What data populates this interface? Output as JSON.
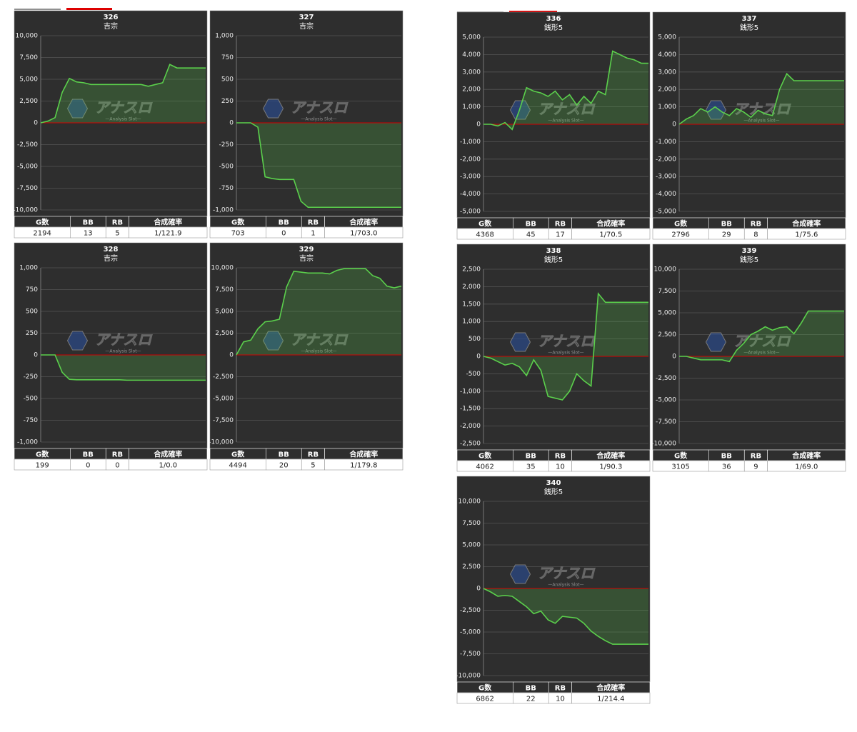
{
  "watermark": {
    "title": "アナスロ",
    "subtitle": "—Analysis Slot—"
  },
  "chart_data": [
    {
      "type": "line",
      "title": "326",
      "subtitle": "吉宗",
      "color": "#5bd04c",
      "ylim": [
        -10000,
        10000
      ],
      "yticks": [
        {
          "value": 10000,
          "label": "10,000"
        },
        {
          "value": 7500,
          "label": "7,500"
        },
        {
          "value": 5000,
          "label": "5,000"
        },
        {
          "value": 2500,
          "label": "2,500"
        },
        0,
        {
          "value": -2500,
          "label": "-2,500"
        },
        {
          "value": -5000,
          "label": "-5,000"
        },
        {
          "value": -7500,
          "label": "-7,500"
        },
        {
          "value": -10000,
          "label": "-10,000"
        }
      ],
      "values": [
        0,
        200,
        600,
        3500,
        5100,
        4700,
        4600,
        4400,
        4400,
        4400,
        4400,
        4400,
        4400,
        4400,
        4400,
        4200,
        4400,
        4600,
        6700,
        6300,
        6300,
        6300,
        6300,
        6300
      ],
      "table": {
        "headers": [
          "G数",
          "BB",
          "RB",
          "合成確率"
        ],
        "row": [
          "2194",
          "13",
          "5",
          "1/121.9"
        ]
      }
    },
    {
      "type": "line",
      "title": "327",
      "subtitle": "吉宗",
      "color": "#5bd04c",
      "ylim": [
        -1000,
        1000
      ],
      "yticks": [
        {
          "value": 1000,
          "label": "1,000"
        },
        750,
        500,
        250,
        0,
        -250,
        -500,
        -750,
        {
          "value": -1000,
          "label": "-1,000"
        }
      ],
      "values": [
        0,
        0,
        0,
        -50,
        -620,
        -640,
        -650,
        -650,
        -650,
        -900,
        -970,
        -970,
        -970,
        -970,
        -970,
        -970,
        -970,
        -970,
        -970,
        -970,
        -970,
        -970,
        -970,
        -970
      ],
      "table": {
        "headers": [
          "G数",
          "BB",
          "RB",
          "合成確率"
        ],
        "row": [
          "703",
          "0",
          "1",
          "1/703.0"
        ]
      }
    },
    {
      "type": "line",
      "title": "328",
      "subtitle": "吉宗",
      "color": "#5bd04c",
      "ylim": [
        -1000,
        1000
      ],
      "yticks": [
        {
          "value": 1000,
          "label": "1,000"
        },
        750,
        500,
        250,
        0,
        -250,
        -500,
        -750,
        {
          "value": -1000,
          "label": "-1,000"
        }
      ],
      "values": [
        0,
        0,
        0,
        -200,
        -280,
        -285,
        -285,
        -285,
        -285,
        -285,
        -285,
        -285,
        -290,
        -290,
        -290,
        -290,
        -290,
        -290,
        -290,
        -290,
        -290,
        -290,
        -290,
        -290
      ],
      "table": {
        "headers": [
          "G数",
          "BB",
          "RB",
          "合成確率"
        ],
        "row": [
          "199",
          "0",
          "0",
          "1/0.0"
        ]
      }
    },
    {
      "type": "line",
      "title": "329",
      "subtitle": "吉宗",
      "color": "#5bd04c",
      "ylim": [
        -10000,
        10000
      ],
      "yticks": [
        {
          "value": 10000,
          "label": "10,000"
        },
        {
          "value": 7500,
          "label": "7,500"
        },
        {
          "value": 5000,
          "label": "5,000"
        },
        {
          "value": 2500,
          "label": "2,500"
        },
        0,
        {
          "value": -2500,
          "label": "-2,500"
        },
        {
          "value": -5000,
          "label": "-5,000"
        },
        {
          "value": -7500,
          "label": "-7,500"
        },
        {
          "value": -10000,
          "label": "-10,000"
        }
      ],
      "values": [
        0,
        1500,
        1700,
        3000,
        3800,
        3900,
        4100,
        7800,
        9600,
        9500,
        9400,
        9400,
        9400,
        9300,
        9700,
        9900,
        9900,
        9900,
        9900,
        9100,
        8800,
        7900,
        7700,
        7900
      ],
      "table": {
        "headers": [
          "G数",
          "BB",
          "RB",
          "合成確率"
        ],
        "row": [
          "4494",
          "20",
          "5",
          "1/179.8"
        ]
      }
    },
    {
      "type": "line",
      "title": "336",
      "subtitle": "銭形5",
      "color": "#5bd04c",
      "ylim": [
        -5000,
        5000
      ],
      "yticks": [
        {
          "value": 5000,
          "label": "5,000"
        },
        {
          "value": 4000,
          "label": "4,000"
        },
        {
          "value": 3000,
          "label": "3,000"
        },
        {
          "value": 2000,
          "label": "2,000"
        },
        {
          "value": 1000,
          "label": "1,000"
        },
        0,
        {
          "value": -1000,
          "label": "-1,000"
        },
        {
          "value": -2000,
          "label": "-2,000"
        },
        {
          "value": -3000,
          "label": "-3,000"
        },
        {
          "value": -4000,
          "label": "-4,000"
        },
        {
          "value": -5000,
          "label": "-5,000"
        }
      ],
      "values": [
        0,
        0,
        -100,
        100,
        -300,
        800,
        2100,
        1900,
        1800,
        1600,
        1900,
        1400,
        1700,
        1100,
        1600,
        1200,
        1900,
        1700,
        4200,
        4000,
        3800,
        3700,
        3500,
        3500
      ],
      "table": {
        "headers": [
          "G数",
          "BB",
          "RB",
          "合成確率"
        ],
        "row": [
          "4368",
          "45",
          "17",
          "1/70.5"
        ]
      }
    },
    {
      "type": "line",
      "title": "337",
      "subtitle": "銭形5",
      "color": "#5bd04c",
      "ylim": [
        -5000,
        5000
      ],
      "yticks": [
        {
          "value": 5000,
          "label": "5,000"
        },
        {
          "value": 4000,
          "label": "4,000"
        },
        {
          "value": 3000,
          "label": "3,000"
        },
        {
          "value": 2000,
          "label": "2,000"
        },
        {
          "value": 1000,
          "label": "1,000"
        },
        0,
        {
          "value": -1000,
          "label": "-1,000"
        },
        {
          "value": -2000,
          "label": "-2,000"
        },
        {
          "value": -3000,
          "label": "-3,000"
        },
        {
          "value": -4000,
          "label": "-4,000"
        },
        {
          "value": -5000,
          "label": "-5,000"
        }
      ],
      "values": [
        0,
        300,
        500,
        900,
        700,
        1000,
        700,
        500,
        900,
        700,
        400,
        800,
        600,
        500,
        2000,
        2900,
        2500,
        2500,
        2500,
        2500,
        2500,
        2500,
        2500,
        2500
      ],
      "table": {
        "headers": [
          "G数",
          "BB",
          "RB",
          "合成確率"
        ],
        "row": [
          "2796",
          "29",
          "8",
          "1/75.6"
        ]
      }
    },
    {
      "type": "line",
      "title": "338",
      "subtitle": "銭形5",
      "color": "#5bd04c",
      "ylim": [
        -2500,
        2500
      ],
      "yticks": [
        {
          "value": 2500,
          "label": "2,500"
        },
        {
          "value": 2000,
          "label": "2,000"
        },
        {
          "value": 1500,
          "label": "1,500"
        },
        {
          "value": 1000,
          "label": "1,000"
        },
        500,
        0,
        -500,
        {
          "value": -1000,
          "label": "-1,000"
        },
        {
          "value": -1500,
          "label": "-1,500"
        },
        {
          "value": -2000,
          "label": "-2,000"
        },
        {
          "value": -2500,
          "label": "-2,500"
        }
      ],
      "values": [
        0,
        -50,
        -150,
        -250,
        -200,
        -300,
        -550,
        -100,
        -400,
        -1150,
        -1200,
        -1250,
        -1000,
        -500,
        -700,
        -850,
        1800,
        1550,
        1550,
        1550,
        1550,
        1550,
        1550,
        1550
      ],
      "table": {
        "headers": [
          "G数",
          "BB",
          "RB",
          "合成確率"
        ],
        "row": [
          "4062",
          "35",
          "10",
          "1/90.3"
        ]
      }
    },
    {
      "type": "line",
      "title": "339",
      "subtitle": "銭形5",
      "color": "#5bd04c",
      "ylim": [
        -10000,
        10000
      ],
      "yticks": [
        {
          "value": 10000,
          "label": "10,000"
        },
        {
          "value": 7500,
          "label": "7,500"
        },
        {
          "value": 5000,
          "label": "5,000"
        },
        {
          "value": 2500,
          "label": "2,500"
        },
        0,
        {
          "value": -2500,
          "label": "-2,500"
        },
        {
          "value": -5000,
          "label": "-5,000"
        },
        {
          "value": -7500,
          "label": "-7,500"
        },
        {
          "value": -10000,
          "label": "-10,000"
        }
      ],
      "values": [
        0,
        0,
        -200,
        -400,
        -400,
        -400,
        -400,
        -600,
        700,
        1500,
        2500,
        2900,
        3400,
        3000,
        3300,
        3400,
        2600,
        3800,
        5200,
        5200,
        5200,
        5200,
        5200,
        5200
      ],
      "table": {
        "headers": [
          "G数",
          "BB",
          "RB",
          "合成確率"
        ],
        "row": [
          "3105",
          "36",
          "9",
          "1/69.0"
        ]
      }
    },
    {
      "type": "line",
      "title": "340",
      "subtitle": "銭形5",
      "color": "#5bd04c",
      "ylim": [
        -10000,
        10000
      ],
      "yticks": [
        {
          "value": 10000,
          "label": "10,000"
        },
        {
          "value": 7500,
          "label": "7,500"
        },
        {
          "value": 5000,
          "label": "5,000"
        },
        {
          "value": 2500,
          "label": "2,500"
        },
        0,
        {
          "value": -2500,
          "label": "-2,500"
        },
        {
          "value": -5000,
          "label": "-5,000"
        },
        {
          "value": -7500,
          "label": "-7,500"
        },
        {
          "value": -10000,
          "label": "-10,000"
        }
      ],
      "values": [
        0,
        -400,
        -900,
        -800,
        -900,
        -1500,
        -2100,
        -2900,
        -2600,
        -3600,
        -4000,
        -3200,
        -3300,
        -3400,
        -4000,
        -4900,
        -5500,
        -6000,
        -6400,
        -6400,
        -6400,
        -6400,
        -6400,
        -6400
      ],
      "table": {
        "headers": [
          "G数",
          "BB",
          "RB",
          "合成確率"
        ],
        "row": [
          "6862",
          "22",
          "10",
          "1/214.4"
        ]
      }
    }
  ]
}
